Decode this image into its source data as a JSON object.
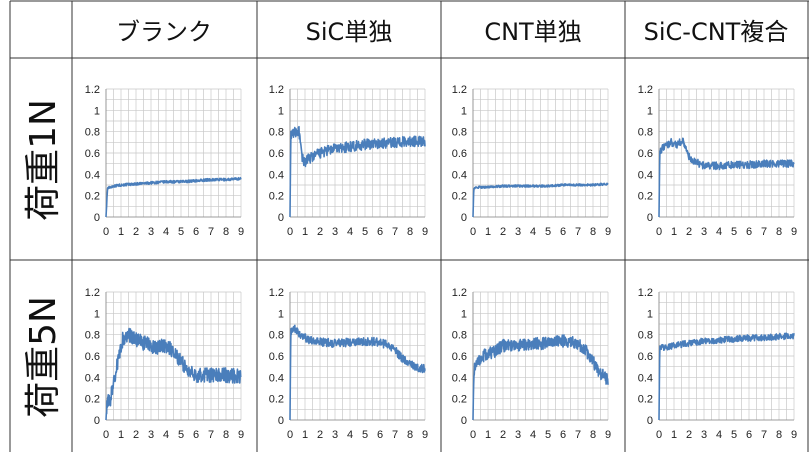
{
  "table": {
    "columns": [
      "ブランク",
      "SiC単独",
      "CNT単独",
      "SiC-CNT複合"
    ],
    "rows": [
      "荷重1N",
      "荷重5N"
    ]
  },
  "colors": {
    "series": "#4a7ebb",
    "grid": "#c8c8c8",
    "border": "#333333"
  },
  "chart_data": [
    {
      "type": "line",
      "name": "ブランク / 荷重1N",
      "xlim": [
        0,
        9
      ],
      "ylim": [
        0,
        1.2
      ],
      "xticks": [
        "0",
        "1",
        "2",
        "3",
        "4",
        "5",
        "6",
        "7",
        "8",
        "9"
      ],
      "yticks": [
        "0",
        "0.2",
        "0.4",
        "0.6",
        "0.8",
        "1",
        "1.2"
      ],
      "grid": true,
      "x": [
        0,
        0.1,
        0.3,
        0.5,
        1,
        2,
        3,
        4,
        5,
        6,
        7,
        8,
        9
      ],
      "y": [
        0,
        0.27,
        0.28,
        0.29,
        0.3,
        0.31,
        0.32,
        0.33,
        0.33,
        0.34,
        0.35,
        0.35,
        0.36
      ],
      "noise": 0.012
    },
    {
      "type": "line",
      "name": "SiC単独 / 荷重1N",
      "xlim": [
        0,
        9
      ],
      "ylim": [
        0,
        1.2
      ],
      "xticks": [
        "0",
        "1",
        "2",
        "3",
        "4",
        "5",
        "6",
        "7",
        "8",
        "9"
      ],
      "yticks": [
        "0",
        "0.2",
        "0.4",
        "0.6",
        "0.8",
        "1",
        "1.2"
      ],
      "grid": true,
      "x": [
        0,
        0.05,
        0.3,
        0.6,
        0.8,
        1.0,
        1.3,
        2,
        3,
        4,
        5,
        6,
        7,
        8,
        9
      ],
      "y": [
        0,
        0.75,
        0.8,
        0.8,
        0.55,
        0.52,
        0.55,
        0.6,
        0.64,
        0.66,
        0.68,
        0.69,
        0.7,
        0.71,
        0.71
      ],
      "noise": 0.05
    },
    {
      "type": "line",
      "name": "CNT単独 / 荷重1N",
      "xlim": [
        0,
        9
      ],
      "ylim": [
        0,
        1.2
      ],
      "xticks": [
        "0",
        "1",
        "2",
        "3",
        "4",
        "5",
        "6",
        "7",
        "8",
        "9"
      ],
      "yticks": [
        "0",
        "0.2",
        "0.4",
        "0.6",
        "0.8",
        "1",
        "1.2"
      ],
      "grid": true,
      "x": [
        0,
        0.05,
        0.5,
        1,
        2,
        3,
        4,
        5,
        6,
        7,
        8,
        9
      ],
      "y": [
        0,
        0.27,
        0.28,
        0.28,
        0.29,
        0.29,
        0.29,
        0.29,
        0.3,
        0.3,
        0.3,
        0.31
      ],
      "noise": 0.01
    },
    {
      "type": "line",
      "name": "SiC-CNT複合 / 荷重1N",
      "xlim": [
        0,
        9
      ],
      "ylim": [
        0,
        1.2
      ],
      "xticks": [
        "0",
        "1",
        "2",
        "3",
        "4",
        "5",
        "6",
        "7",
        "8",
        "9"
      ],
      "yticks": [
        "0",
        "0.2",
        "0.4",
        "0.6",
        "0.8",
        "1",
        "1.2"
      ],
      "grid": true,
      "x": [
        0,
        0.05,
        0.3,
        0.8,
        1.2,
        1.6,
        1.9,
        2.1,
        2.5,
        2.8,
        3.0,
        4,
        5,
        6,
        7,
        8,
        9
      ],
      "y": [
        0,
        0.62,
        0.65,
        0.7,
        0.68,
        0.72,
        0.6,
        0.53,
        0.52,
        0.49,
        0.48,
        0.48,
        0.49,
        0.49,
        0.5,
        0.5,
        0.5
      ],
      "noise": 0.035
    },
    {
      "type": "line",
      "name": "ブランク / 荷重5N",
      "xlim": [
        0,
        9
      ],
      "ylim": [
        0,
        1.2
      ],
      "xticks": [
        "0",
        "1",
        "2",
        "3",
        "4",
        "5",
        "6",
        "7",
        "8",
        "9"
      ],
      "yticks": [
        "0",
        "0.2",
        "0.4",
        "0.6",
        "0.8",
        "1",
        "1.2"
      ],
      "grid": true,
      "x": [
        0,
        0.05,
        0.3,
        0.5,
        0.8,
        1.1,
        1.5,
        2,
        2.5,
        3,
        3.5,
        4,
        4.5,
        5,
        5.5,
        6,
        7,
        8,
        9
      ],
      "y": [
        0,
        0.15,
        0.2,
        0.35,
        0.55,
        0.75,
        0.8,
        0.75,
        0.72,
        0.7,
        0.68,
        0.7,
        0.65,
        0.55,
        0.45,
        0.42,
        0.42,
        0.42,
        0.41
      ],
      "noise": 0.07
    },
    {
      "type": "line",
      "name": "SiC単独 / 荷重5N",
      "xlim": [
        0,
        9
      ],
      "ylim": [
        0,
        1.2
      ],
      "xticks": [
        "0",
        "1",
        "2",
        "3",
        "4",
        "5",
        "6",
        "7",
        "8",
        "9"
      ],
      "yticks": [
        "0",
        "0.2",
        "0.4",
        "0.6",
        "0.8",
        "1",
        "1.2"
      ],
      "grid": true,
      "x": [
        0,
        0.05,
        0.3,
        0.8,
        1.5,
        2,
        3,
        4,
        5,
        6,
        6.5,
        7,
        7.5,
        8,
        8.5,
        9
      ],
      "y": [
        0,
        0.82,
        0.85,
        0.78,
        0.74,
        0.73,
        0.72,
        0.73,
        0.74,
        0.73,
        0.7,
        0.65,
        0.58,
        0.52,
        0.49,
        0.48
      ],
      "noise": 0.04
    },
    {
      "type": "line",
      "name": "CNT単独 / 荷重5N",
      "xlim": [
        0,
        9
      ],
      "ylim": [
        0,
        1.2
      ],
      "xticks": [
        "0",
        "1",
        "2",
        "3",
        "4",
        "5",
        "6",
        "7",
        "8",
        "9"
      ],
      "yticks": [
        "0",
        "0.2",
        "0.4",
        "0.6",
        "0.8",
        "1",
        "1.2"
      ],
      "grid": true,
      "x": [
        0,
        0.05,
        0.3,
        0.6,
        1,
        1.5,
        2,
        3,
        4,
        5,
        6,
        7,
        7.5,
        8,
        8.5,
        9
      ],
      "y": [
        0,
        0.45,
        0.55,
        0.6,
        0.62,
        0.65,
        0.7,
        0.7,
        0.72,
        0.72,
        0.74,
        0.72,
        0.65,
        0.55,
        0.44,
        0.38
      ],
      "noise": 0.06
    },
    {
      "type": "line",
      "name": "SiC-CNT複合 / 荷重5N",
      "xlim": [
        0,
        9
      ],
      "ylim": [
        0,
        1.2
      ],
      "xticks": [
        "0",
        "1",
        "2",
        "3",
        "4",
        "5",
        "6",
        "7",
        "8",
        "9"
      ],
      "yticks": [
        "0",
        "0.2",
        "0.4",
        "0.6",
        "0.8",
        "1",
        "1.2"
      ],
      "grid": true,
      "x": [
        0,
        0.05,
        0.3,
        1,
        2,
        3,
        4,
        5,
        6,
        7,
        8,
        9
      ],
      "y": [
        0,
        0.7,
        0.68,
        0.7,
        0.72,
        0.74,
        0.75,
        0.76,
        0.77,
        0.77,
        0.78,
        0.79
      ],
      "noise": 0.03
    }
  ]
}
